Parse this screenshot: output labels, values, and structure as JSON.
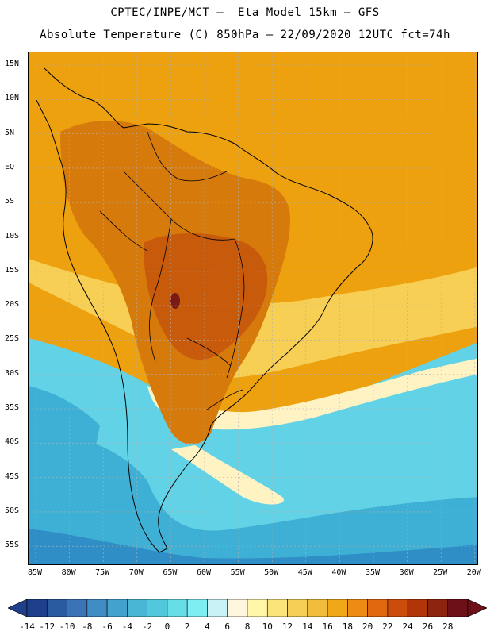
{
  "title_line1": "CPTEC/INPE/MCT –  Eta Model 15km – GFS",
  "title_line2": "Absolute Temperature (C) 850hPa – 22/09/2020 12UTC fct=74h",
  "lat_labels": [
    "15N",
    "10N",
    "5N",
    "EQ",
    "5S",
    "10S",
    "15S",
    "20S",
    "25S",
    "30S",
    "35S",
    "40S",
    "45S",
    "50S",
    "55S"
  ],
  "lon_labels": [
    "85W",
    "80W",
    "75W",
    "70W",
    "65W",
    "60W",
    "55W",
    "50W",
    "45W",
    "40W",
    "35W",
    "30W",
    "25W",
    "20W"
  ],
  "colorbar": {
    "labels": [
      "-14",
      "-12",
      "-10",
      "-8",
      "-6",
      "-4",
      "-2",
      "0",
      "2",
      "4",
      "6",
      "8",
      "10",
      "12",
      "14",
      "16",
      "18",
      "20",
      "22",
      "24",
      "26",
      "28"
    ],
    "colors": [
      "#1e3f8c",
      "#2a5aa0",
      "#3a74b5",
      "#3f8cc4",
      "#44a2cf",
      "#4ab6d6",
      "#52c8dc",
      "#66dce6",
      "#7eeef2",
      "#c8f2f6",
      "#fff6e0",
      "#fff6a8",
      "#fbe47a",
      "#f6d054",
      "#f2bc3c",
      "#f0a818",
      "#ec8c12",
      "#e0680e",
      "#cc4c0c",
      "#b0360a",
      "#8c2410",
      "#6e1018"
    ]
  },
  "region_colors": {
    "ocean_north": "#eea10f",
    "continent": "#d67a0c",
    "hot_core": "#c85a0c",
    "max": "#7a1a14",
    "warm_band": "#f7cf55",
    "pale": "#fff3c4",
    "cool": "#62d3e6",
    "cold": "#3fb0d5",
    "colder": "#2f8ec5"
  }
}
